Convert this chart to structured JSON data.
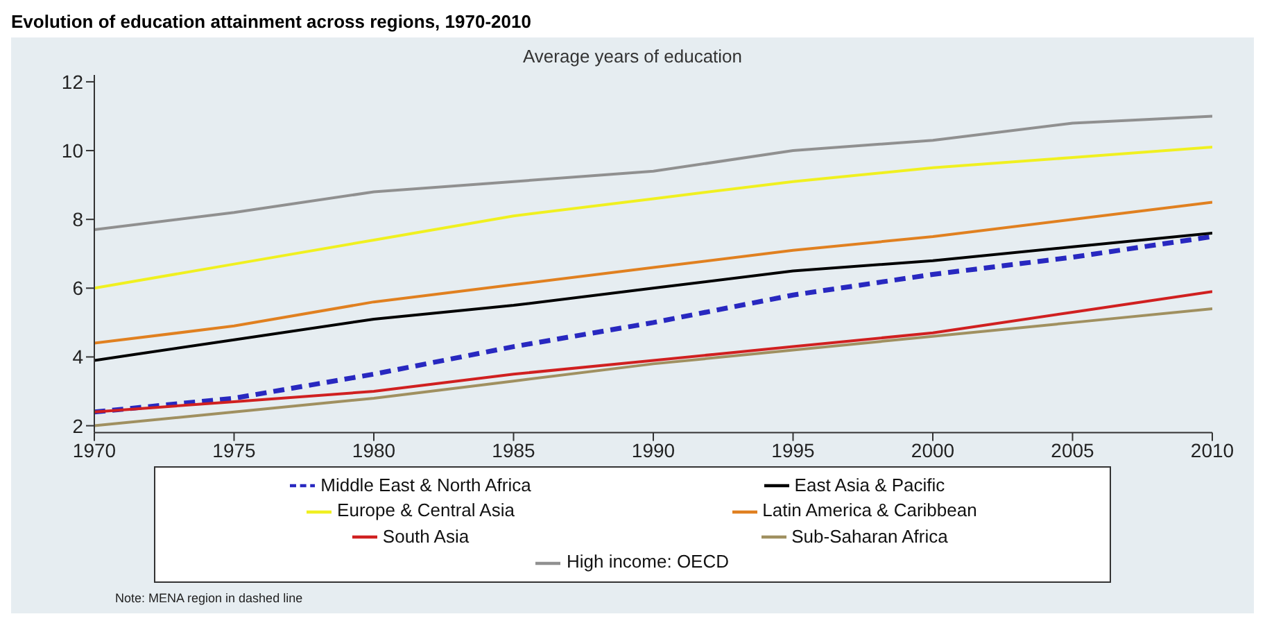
{
  "chart_data": {
    "type": "line",
    "title": "Evolution of education attainment across regions, 1970-2010",
    "subtitle": "Average years of education",
    "x": [
      1970,
      1975,
      1980,
      1985,
      1990,
      1995,
      2000,
      2005,
      2010
    ],
    "xlim": [
      1970,
      2010
    ],
    "xticks": [
      1970,
      1975,
      1980,
      1985,
      1990,
      1995,
      2000,
      2005,
      2010
    ],
    "ylim": [
      1.8,
      12.2
    ],
    "yticks": [
      2,
      4,
      6,
      8,
      10,
      12
    ],
    "grid": false,
    "marker": "none",
    "legend": "bottom",
    "annotations": [
      "Note: MENA region in dashed line"
    ],
    "series": [
      {
        "name": "Middle East & North Africa",
        "color": "#2828c0",
        "line_style": "dashed",
        "values": [
          2.4,
          2.8,
          3.5,
          4.3,
          5.0,
          5.8,
          6.4,
          6.9,
          7.5
        ]
      },
      {
        "name": "East Asia & Pacific",
        "color": "#000000",
        "values": [
          3.9,
          4.5,
          5.1,
          5.5,
          6.0,
          6.5,
          6.8,
          7.2,
          7.6
        ]
      },
      {
        "name": "Europe & Central Asia",
        "color": "#f0f020",
        "values": [
          6.0,
          6.7,
          7.4,
          8.1,
          8.6,
          9.1,
          9.5,
          9.8,
          10.1
        ]
      },
      {
        "name": "Latin America & Caribbean",
        "color": "#e08020",
        "values": [
          4.4,
          4.9,
          5.6,
          6.1,
          6.6,
          7.1,
          7.5,
          8.0,
          8.5
        ]
      },
      {
        "name": "South Asia",
        "color": "#d02020",
        "values": [
          2.4,
          2.7,
          3.0,
          3.5,
          3.9,
          4.3,
          4.7,
          5.3,
          5.9
        ]
      },
      {
        "name": "Sub-Saharan Africa",
        "color": "#a09060",
        "values": [
          2.0,
          2.4,
          2.8,
          3.3,
          3.8,
          4.2,
          4.6,
          5.0,
          5.4
        ]
      },
      {
        "name": "High income: OECD",
        "color": "#909090",
        "values": [
          7.7,
          8.2,
          8.8,
          9.1,
          9.4,
          10.0,
          10.3,
          10.8,
          11.0
        ]
      }
    ]
  }
}
